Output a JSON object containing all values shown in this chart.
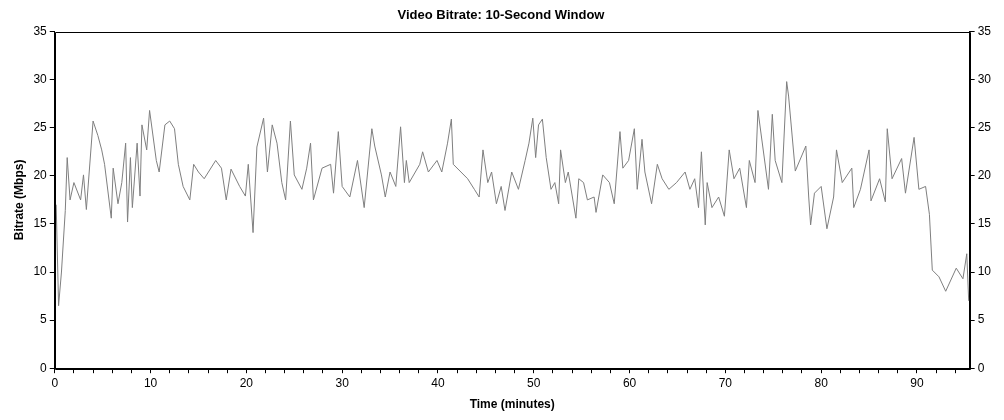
{
  "chart_data": {
    "type": "line",
    "title": "Video Bitrate: 10-Second Window",
    "xlabel": "Time (minutes)",
    "ylabel": "Bitrate (Mbps)",
    "x": [
      0.15,
      0.4,
      0.7,
      1.1,
      1.3,
      1.6,
      2.0,
      2.7,
      3.0,
      3.3,
      4.0,
      4.5,
      4.9,
      5.2,
      5.9,
      6.1,
      6.6,
      7.0,
      7.4,
      7.6,
      7.9,
      8.1,
      8.6,
      8.9,
      9.1,
      9.6,
      9.9,
      10.6,
      10.9,
      11.5,
      12.0,
      12.5,
      12.9,
      13.4,
      14.1,
      14.5,
      15.0,
      15.6,
      16.8,
      17.4,
      17.9,
      18.4,
      19.3,
      19.9,
      20.2,
      20.7,
      21.1,
      21.8,
      22.2,
      22.7,
      23.2,
      23.7,
      24.1,
      24.6,
      25.0,
      25.8,
      26.3,
      26.7,
      27.0,
      27.9,
      28.8,
      29.1,
      29.6,
      30.0,
      30.8,
      31.6,
      32.3,
      33.1,
      33.4,
      34.1,
      34.5,
      35.0,
      35.6,
      36.1,
      36.5,
      36.7,
      37.0,
      38.1,
      38.4,
      39.0,
      39.9,
      40.4,
      41.0,
      41.4,
      41.6,
      42.4,
      43.1,
      43.8,
      44.3,
      44.7,
      45.2,
      45.6,
      46.1,
      46.6,
      47.0,
      47.7,
      48.4,
      49.1,
      49.5,
      49.9,
      50.2,
      50.5,
      50.9,
      51.3,
      51.8,
      52.2,
      52.6,
      52.8,
      53.3,
      53.6,
      54.4,
      54.7,
      55.2,
      55.6,
      56.3,
      56.5,
      57.2,
      57.9,
      58.4,
      59.0,
      59.3,
      59.9,
      60.5,
      60.8,
      61.3,
      61.6,
      62.3,
      62.9,
      63.4,
      64.1,
      64.9,
      65.8,
      66.3,
      66.8,
      67.2,
      67.5,
      67.9,
      68.1,
      68.6,
      69.3,
      69.9,
      70.4,
      70.9,
      71.5,
      72.2,
      72.5,
      73.1,
      73.4,
      74.5,
      74.9,
      75.2,
      75.9,
      76.4,
      76.6,
      77.3,
      78.4,
      78.7,
      78.9,
      79.3,
      80.0,
      80.6,
      81.3,
      81.6,
      82.2,
      83.2,
      83.4,
      84.1,
      85.0,
      85.2,
      86.1,
      86.7,
      86.9,
      87.4,
      88.4,
      88.8,
      89.7,
      90.2,
      90.9,
      91.3,
      91.6,
      92.3,
      93.0,
      94.1,
      94.8,
      95.2,
      95.4
    ],
    "series": [
      {
        "color": "#7f7f7f",
        "values": [
          17,
          6.5,
          10,
          16.4,
          21.9,
          17.5,
          19.3,
          17.5,
          20.1,
          16.5,
          25.7,
          24.2,
          22.7,
          21.2,
          15.6,
          20.8,
          17.1,
          19.3,
          23.4,
          15.2,
          21.9,
          16.7,
          23.4,
          17.9,
          25.3,
          22.7,
          26.8,
          21.6,
          20.4,
          25.3,
          25.7,
          24.9,
          21.2,
          18.9,
          17.5,
          21.2,
          20.4,
          19.7,
          21.6,
          20.8,
          17.5,
          20.7,
          18.9,
          17.9,
          21.2,
          14.1,
          23,
          26,
          20.4,
          25.3,
          23.4,
          19.3,
          17.5,
          25.7,
          20.1,
          18.6,
          20.8,
          23.4,
          17.5,
          20.8,
          21.2,
          18.2,
          24.6,
          18.9,
          17.8,
          21.6,
          16.7,
          24.9,
          23.1,
          20.1,
          17.8,
          20.4,
          18.9,
          25.1,
          19.3,
          21.6,
          19.3,
          21.2,
          22.5,
          20.4,
          21.6,
          20.4,
          23.4,
          25.9,
          21.2,
          20.4,
          19.7,
          18.6,
          17.8,
          22.7,
          19.3,
          20.4,
          17.1,
          18.9,
          16.4,
          20.4,
          18.6,
          21.6,
          23.4,
          26,
          21.9,
          25.3,
          25.9,
          21.9,
          18.6,
          19.3,
          17.1,
          22.7,
          19.3,
          20.4,
          15.6,
          19.7,
          19.3,
          17.5,
          17.8,
          16.2,
          20.1,
          19.3,
          17.1,
          24.6,
          20.8,
          21.6,
          24.9,
          18.6,
          23.8,
          20.4,
          17.1,
          21.2,
          19.7,
          18.6,
          19.3,
          20.4,
          18.6,
          19.7,
          16.7,
          22.5,
          14.9,
          19.3,
          16.7,
          17.8,
          15.8,
          22.7,
          19.7,
          20.8,
          16.7,
          21.6,
          19.3,
          26.8,
          18.6,
          26.4,
          21.6,
          19.3,
          29.8,
          28.3,
          20.5,
          23.1,
          17.8,
          14.9,
          18.2,
          18.9,
          14.5,
          17.8,
          22.7,
          19.3,
          20.8,
          16.7,
          18.6,
          22.7,
          17.4,
          19.7,
          17.3,
          24.9,
          19.7,
          21.8,
          18.2,
          24,
          18.6,
          18.9,
          16,
          10.2,
          9.5,
          8,
          10.4,
          9.3,
          11.9,
          7
        ]
      }
    ],
    "xlim": [
      0,
      95.5
    ],
    "xticks": [
      0,
      {
        "value": 2,
        "label": null
      },
      {
        "value": 4,
        "label": null
      },
      {
        "value": 6,
        "label": null
      },
      {
        "value": 8,
        "label": null
      },
      10,
      {
        "value": 12,
        "label": null
      },
      {
        "value": 14,
        "label": null
      },
      {
        "value": 16,
        "label": null
      },
      {
        "value": 18,
        "label": null
      },
      20,
      {
        "value": 22,
        "label": null
      },
      {
        "value": 24,
        "label": null
      },
      {
        "value": 26,
        "label": null
      },
      {
        "value": 28,
        "label": null
      },
      30,
      {
        "value": 32,
        "label": null
      },
      {
        "value": 34,
        "label": null
      },
      {
        "value": 36,
        "label": null
      },
      {
        "value": 38,
        "label": null
      },
      40,
      {
        "value": 42,
        "label": null
      },
      {
        "value": 44,
        "label": null
      },
      {
        "value": 46,
        "label": null
      },
      {
        "value": 48,
        "label": null
      },
      50,
      {
        "value": 52,
        "label": null
      },
      {
        "value": 54,
        "label": null
      },
      {
        "value": 56,
        "label": null
      },
      {
        "value": 58,
        "label": null
      },
      60,
      {
        "value": 62,
        "label": null
      },
      {
        "value": 64,
        "label": null
      },
      {
        "value": 66,
        "label": null
      },
      {
        "value": 68,
        "label": null
      },
      70,
      {
        "value": 72,
        "label": null
      },
      {
        "value": 74,
        "label": null
      },
      {
        "value": 76,
        "label": null
      },
      {
        "value": 78,
        "label": null
      },
      80,
      {
        "value": 82,
        "label": null
      },
      {
        "value": 84,
        "label": null
      },
      {
        "value": 86,
        "label": null
      },
      {
        "value": 88,
        "label": null
      },
      90,
      {
        "value": 92,
        "label": null
      },
      {
        "value": 94,
        "label": null
      }
    ],
    "ylim": [
      0,
      35
    ],
    "yticks": [
      0,
      5,
      10,
      15,
      20,
      25,
      30,
      35
    ],
    "y2lim": [
      0,
      35
    ],
    "y2ticks": [
      0,
      5,
      10,
      15,
      20,
      25,
      30,
      35
    ],
    "marker": "none",
    "line_style": "solid",
    "legend": false,
    "grid": false
  }
}
